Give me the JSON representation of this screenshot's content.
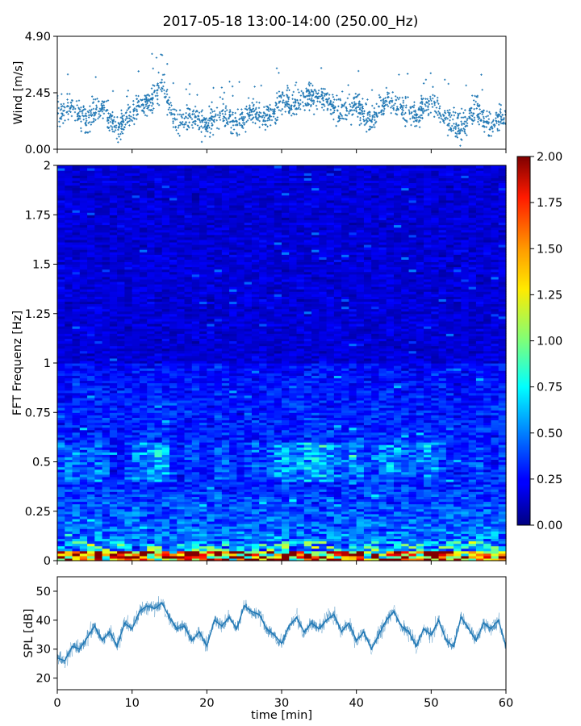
{
  "chart_data": [
    {
      "type": "scatter",
      "title": "2017-05-18 13:00-14:00 (250.00_Hz)",
      "xlabel": "",
      "ylabel": "Wind [m/s]",
      "xlim": [
        0,
        60
      ],
      "ylim": [
        0,
        4.9
      ],
      "x_tick_labels_visible": false,
      "yticks": [
        0.0,
        2.45,
        4.9
      ],
      "ytick_labels": [
        "0.00",
        "2.45",
        "4.90"
      ],
      "color": "#1f77b4",
      "marker": "+",
      "envelope_points": [
        {
          "x": 0,
          "y": 1.5
        },
        {
          "x": 2,
          "y": 1.9
        },
        {
          "x": 4,
          "y": 1.3
        },
        {
          "x": 6,
          "y": 1.9
        },
        {
          "x": 8,
          "y": 0.8
        },
        {
          "x": 10,
          "y": 1.7
        },
        {
          "x": 12,
          "y": 2.0
        },
        {
          "x": 14,
          "y": 2.6
        },
        {
          "x": 16,
          "y": 1.0
        },
        {
          "x": 18,
          "y": 1.5
        },
        {
          "x": 20,
          "y": 0.9
        },
        {
          "x": 22,
          "y": 1.7
        },
        {
          "x": 24,
          "y": 1.1
        },
        {
          "x": 26,
          "y": 1.6
        },
        {
          "x": 28,
          "y": 1.3
        },
        {
          "x": 30,
          "y": 2.1
        },
        {
          "x": 32,
          "y": 1.9
        },
        {
          "x": 34,
          "y": 2.3
        },
        {
          "x": 36,
          "y": 2.2
        },
        {
          "x": 38,
          "y": 1.6
        },
        {
          "x": 40,
          "y": 1.9
        },
        {
          "x": 42,
          "y": 1.2
        },
        {
          "x": 44,
          "y": 2.1
        },
        {
          "x": 46,
          "y": 1.8
        },
        {
          "x": 48,
          "y": 1.4
        },
        {
          "x": 50,
          "y": 2.1
        },
        {
          "x": 52,
          "y": 1.3
        },
        {
          "x": 54,
          "y": 0.9
        },
        {
          "x": 56,
          "y": 1.8
        },
        {
          "x": 58,
          "y": 1.0
        },
        {
          "x": 60,
          "y": 1.5
        }
      ],
      "n_points": 1800
    },
    {
      "type": "heatmap",
      "xlabel": "",
      "ylabel": "FFT Frequenz [Hz]",
      "xlim": [
        0,
        60
      ],
      "ylim": [
        0,
        2
      ],
      "x_tick_labels_visible": false,
      "yticks": [
        0,
        0.25,
        0.5,
        0.75,
        1,
        1.25,
        1.5,
        1.75,
        2
      ],
      "ytick_labels": [
        "0",
        "0.25",
        "0.5",
        "0.75",
        "1",
        "1.25",
        "1.5",
        "1.75",
        "2"
      ],
      "colormap": "jet",
      "colorbar": {
        "range": [
          0,
          2
        ],
        "ticks": [
          0.0,
          0.25,
          0.5,
          0.75,
          1.0,
          1.25,
          1.5,
          1.75,
          2.0
        ],
        "tick_labels": [
          "0.00",
          "0.25",
          "0.50",
          "0.75",
          "1.00",
          "1.25",
          "1.50",
          "1.75",
          "2.00"
        ]
      },
      "n_time_bins": 60,
      "n_freq_bins": 160,
      "approx_intensity": {
        "below_0.05Hz": 1.7,
        "0.05_to_0.1Hz": 0.75,
        "0.4_to_0.6Hz_band": 0.45,
        "0.6_to_1Hz": 0.28,
        "above_1Hz": 0.18
      }
    },
    {
      "type": "line",
      "xlabel": "time [min]",
      "ylabel": "SPL [dB]",
      "xlim": [
        0,
        60
      ],
      "ylim": [
        16,
        55
      ],
      "xticks": [
        0,
        10,
        20,
        30,
        40,
        50,
        60
      ],
      "xtick_labels": [
        "0",
        "10",
        "20",
        "30",
        "40",
        "50",
        "60"
      ],
      "yticks": [
        20,
        30,
        40,
        50
      ],
      "ytick_labels": [
        "20",
        "30",
        "40",
        "50"
      ],
      "color": "#1f77b4",
      "x": [
        0,
        1,
        2,
        3,
        4,
        5,
        6,
        7,
        8,
        9,
        10,
        11,
        12,
        13,
        14,
        15,
        16,
        17,
        18,
        19,
        20,
        21,
        22,
        23,
        24,
        25,
        26,
        27,
        28,
        29,
        30,
        31,
        32,
        33,
        34,
        35,
        36,
        37,
        38,
        39,
        40,
        41,
        42,
        43,
        44,
        45,
        46,
        47,
        48,
        49,
        50,
        51,
        52,
        53,
        54,
        55,
        56,
        57,
        58,
        59,
        60
      ],
      "values": [
        27,
        26,
        31,
        30,
        34,
        38,
        33,
        36,
        31,
        39,
        37,
        43,
        45,
        44,
        46,
        41,
        37,
        38,
        33,
        36,
        31,
        40,
        38,
        41,
        37,
        45,
        43,
        42,
        37,
        35,
        32,
        38,
        41,
        36,
        39,
        37,
        40,
        42,
        36,
        39,
        33,
        36,
        30,
        35,
        40,
        43,
        38,
        36,
        31,
        37,
        35,
        40,
        33,
        31,
        41,
        37,
        33,
        39,
        37,
        40,
        31
      ]
    }
  ]
}
